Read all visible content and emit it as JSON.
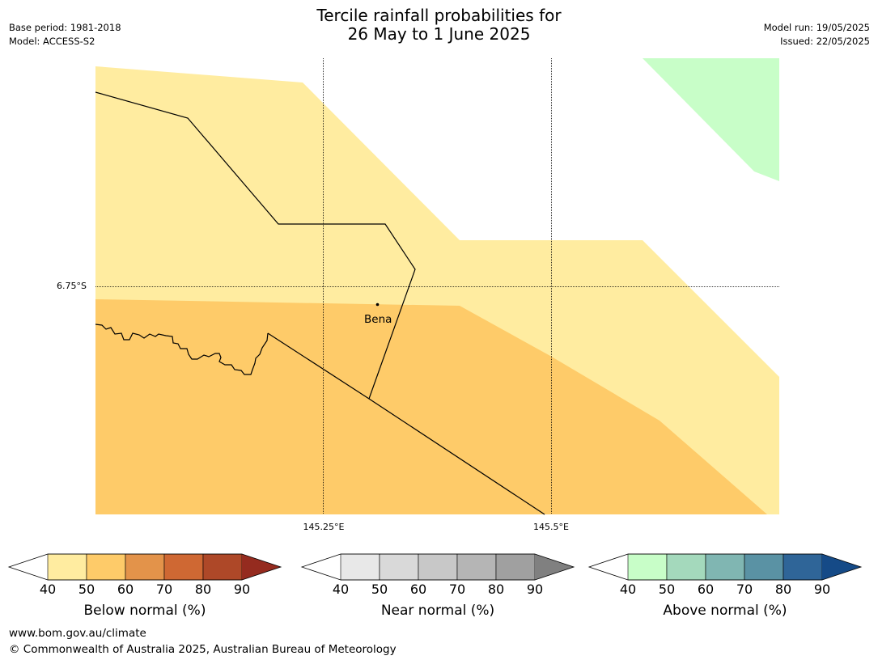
{
  "title": {
    "line1": "Tercile rainfall probabilities for",
    "line2": "26 May to 1 June 2025"
  },
  "meta": {
    "base_period": "Base period: 1981-2018",
    "model": "Model: ACCESS-S2",
    "model_run": "Model run: 19/05/2025",
    "issued": "Issued: 22/05/2025"
  },
  "map": {
    "lat_labels": [
      "6.75°S"
    ],
    "lon_labels": [
      "145.25°E",
      "145.5°E"
    ],
    "places": [
      {
        "name": "Bena"
      }
    ],
    "colors": {
      "below_40_50": "#ffeca0",
      "below_50_60": "#fecb69",
      "above_40_50": "#c8fec8",
      "boundary": "#000000",
      "gridline": "#000000"
    }
  },
  "colorbars": [
    {
      "label": "Below normal (%)",
      "ticks": [
        "40",
        "50",
        "60",
        "70",
        "80",
        "90"
      ],
      "colors": [
        "#ffffff",
        "#ffeca0",
        "#fecb69",
        "#e3934a",
        "#cf6833",
        "#ae4828",
        "#952b1f"
      ]
    },
    {
      "label": "Near normal (%)",
      "ticks": [
        "40",
        "50",
        "60",
        "70",
        "80",
        "90"
      ],
      "colors": [
        "#ffffff",
        "#e8e8e8",
        "#d9d9d9",
        "#c8c8c8",
        "#b5b5b5",
        "#a0a0a0",
        "#808080"
      ]
    },
    {
      "label": "Above normal (%)",
      "ticks": [
        "40",
        "50",
        "60",
        "70",
        "80",
        "90"
      ],
      "colors": [
        "#ffffff",
        "#c8fec8",
        "#a4d9bc",
        "#80b6b2",
        "#5a92a4",
        "#2f6598",
        "#154a87"
      ]
    }
  ],
  "footer": {
    "url": "www.bom.gov.au/climate",
    "copyright": "© Commonwealth of Australia 2025, Australian Bureau of Meteorology"
  }
}
